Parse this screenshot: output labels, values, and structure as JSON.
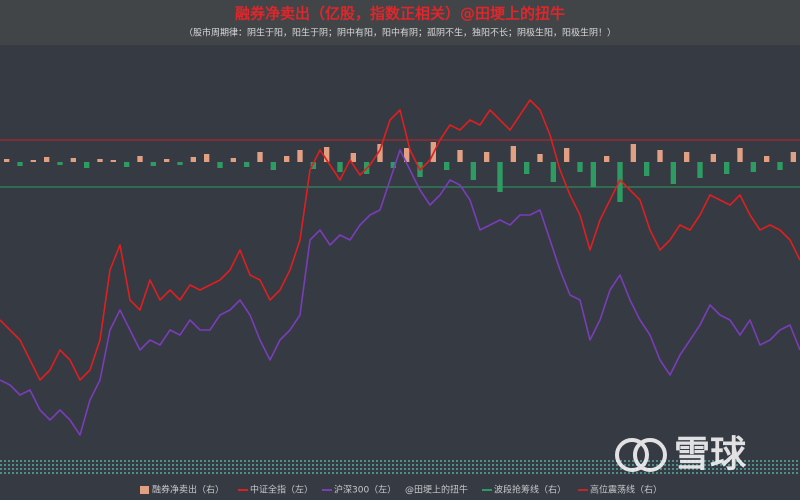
{
  "chart_data": {
    "type": "line",
    "title": "融券净卖出（亿股，指数正相关）@田埂上的扭牛",
    "subtitle": "（股市周期律：阴生于阳，阳生于阴；阴中有阳，阳中有阴；孤阴不生，独阳不长；阴极生阳，阳极生阴！）",
    "ylim": [
      0,
      415
    ],
    "y2lim": [
      -298,
      117
    ],
    "series": [
      {
        "name": "融券净卖出（右）",
        "type": "bar",
        "axis": "y2",
        "color": "#e2a083",
        "negative_color": "#2e9b62",
        "values": [
          3,
          -4,
          2,
          5,
          -3,
          4,
          -6,
          3,
          2,
          -5,
          6,
          -4,
          3,
          -3,
          5,
          8,
          -6,
          4,
          -5,
          10,
          -8,
          6,
          12,
          -7,
          15,
          -10,
          9,
          -12,
          18,
          -6,
          14,
          -15,
          20,
          -8,
          12,
          -18,
          10,
          -30,
          16,
          -12,
          8,
          -20,
          14,
          -10,
          -25,
          6,
          -40,
          18,
          -14,
          12,
          -22,
          10,
          -16,
          8,
          -12,
          14,
          -10,
          6,
          -8,
          10
        ]
      },
      {
        "name": "中证全指（左）",
        "type": "line",
        "color": "#e01f1f",
        "values": [
          140,
          130,
          120,
          100,
          80,
          90,
          110,
          100,
          80,
          90,
          120,
          190,
          215,
          160,
          150,
          180,
          160,
          170,
          160,
          175,
          170,
          175,
          180,
          190,
          210,
          185,
          180,
          160,
          170,
          190,
          220,
          290,
          310,
          295,
          280,
          300,
          285,
          295,
          310,
          340,
          350,
          310,
          290,
          300,
          320,
          335,
          330,
          340,
          335,
          350,
          340,
          330,
          345,
          360,
          350,
          325,
          290,
          265,
          245,
          210,
          240,
          260,
          280,
          270,
          260,
          230,
          210,
          220,
          235,
          230,
          245,
          265,
          260,
          255,
          265,
          245,
          230,
          235,
          230,
          220,
          200
        ]
      },
      {
        "name": "沪深300（左）",
        "type": "line",
        "color": "#7a3db8",
        "values": [
          80,
          75,
          65,
          70,
          50,
          40,
          50,
          40,
          25,
          60,
          80,
          130,
          150,
          130,
          110,
          120,
          115,
          130,
          125,
          140,
          130,
          130,
          145,
          150,
          160,
          145,
          120,
          100,
          120,
          130,
          145,
          220,
          230,
          215,
          225,
          220,
          235,
          245,
          250,
          280,
          310,
          290,
          270,
          255,
          265,
          280,
          275,
          260,
          230,
          235,
          240,
          235,
          245,
          245,
          250,
          220,
          190,
          165,
          160,
          120,
          140,
          170,
          185,
          160,
          140,
          125,
          100,
          85,
          105,
          120,
          135,
          155,
          145,
          140,
          125,
          140,
          115,
          120,
          130,
          135,
          110
        ]
      },
      {
        "name": "波段抢筹线（右）",
        "type": "hline",
        "axis": "y2",
        "color": "#2e9b62",
        "values": [
          -25
        ]
      },
      {
        "name": "高位震荡线（右）",
        "type": "hline",
        "axis": "y2",
        "color": "#c0262a",
        "values": [
          22
        ]
      }
    ],
    "credit": "@田埂上的扭牛",
    "watermark": "雪球"
  }
}
